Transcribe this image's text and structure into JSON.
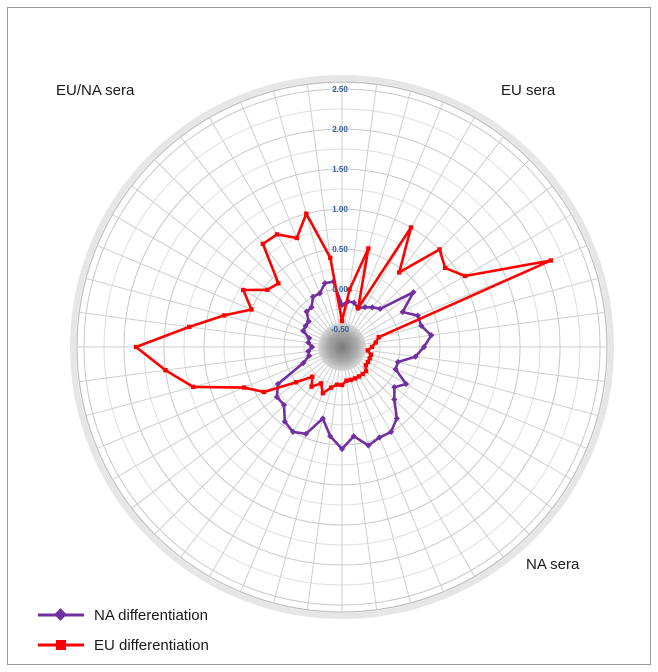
{
  "chart_data": {
    "type": "radar",
    "title": "",
    "axis_ticks": [
      "-0.50",
      "0.00",
      "0.50",
      "1.00",
      "1.50",
      "2.00",
      "2.50"
    ],
    "rlim": [
      -0.5,
      2.5
    ],
    "spokes": 48,
    "grid": true,
    "legend_position": "bottom-left",
    "region_labels": [
      {
        "name": "eu-na-sera-label",
        "text": "EU/NA sera"
      },
      {
        "name": "eu-sera-label",
        "text": "EU sera"
      },
      {
        "name": "na-sera-label",
        "text": "NA sera"
      }
    ],
    "series": [
      {
        "name": "NA differentiation",
        "color": "#7030a0",
        "marker": "diamond",
        "values": [
          -0.2,
          -0.15,
          -0.15,
          -0.2,
          -0.15,
          -0.1,
          -0.05,
          0.4,
          0.15,
          0.3,
          0.3,
          0.4,
          0.3,
          0.2,
          0.0,
          0.0,
          0.2,
          0.1,
          0.2,
          0.4,
          0.5,
          0.5,
          0.55,
          0.4,
          0.55,
          0.4,
          0.2,
          0.45,
          0.5,
          0.45,
          0.3,
          0.3,
          0.2,
          -0.2,
          -0.3,
          -0.3,
          -0.35,
          -0.3,
          -0.3,
          -0.2,
          -0.2,
          -0.2,
          -0.1,
          -0.1,
          0.0,
          0.0,
          0.1,
          0.1
        ]
      },
      {
        "name": "EU differentiation",
        "color": "#ff0000",
        "marker": "square",
        "values": [
          -0.4,
          0.0,
          0.55,
          -0.2,
          1.0,
          0.45,
          1.0,
          0.9,
          1.05,
          2.1,
          -0.25,
          -0.3,
          -0.35,
          -0.4,
          -0.35,
          -0.35,
          -0.35,
          -0.35,
          -0.3,
          -0.3,
          -0.3,
          -0.3,
          -0.3,
          -0.3,
          -0.25,
          -0.25,
          -0.2,
          -0.1,
          -0.2,
          -0.1,
          -0.2,
          0.0,
          0.4,
          0.6,
          1.2,
          1.5,
          1.85,
          1.2,
          0.8,
          0.5,
          0.7,
          0.45,
          0.4,
          0.9,
          0.9,
          0.75,
          1.0,
          0.4
        ]
      }
    ]
  },
  "legend": {
    "items": [
      {
        "label": "NA differentiation",
        "color": "#7030a0"
      },
      {
        "label": "EU differentiation",
        "color": "#ff0000"
      }
    ]
  }
}
